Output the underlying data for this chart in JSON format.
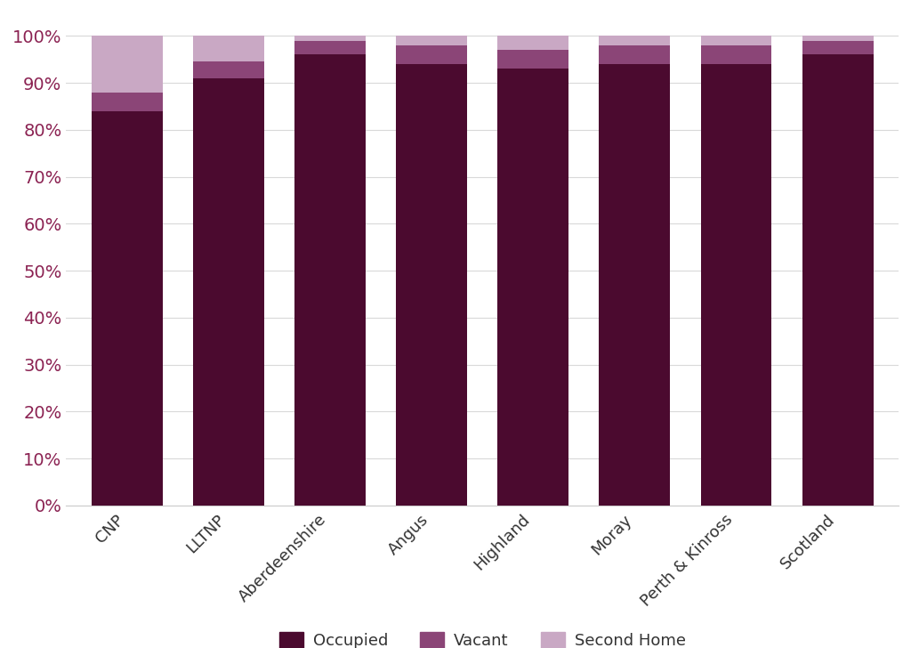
{
  "categories": [
    "CNP",
    "LLTNP",
    "Aberdeenshire",
    "Angus",
    "Highland",
    "Moray",
    "Perth & Kinross",
    "Scotland"
  ],
  "occupied": [
    84.0,
    91.0,
    96.0,
    94.0,
    93.0,
    94.0,
    94.0,
    96.0
  ],
  "vacant": [
    4.0,
    3.5,
    3.0,
    4.0,
    4.0,
    4.0,
    4.0,
    3.0
  ],
  "second_home": [
    12.0,
    5.5,
    1.0,
    2.0,
    3.0,
    2.0,
    2.0,
    1.0
  ],
  "color_occupied": "#4b0a2f",
  "color_vacant": "#8b4577",
  "color_second_home": "#c9a8c4",
  "tick_color": "#8b2252",
  "grid_color": "#d9d9d9",
  "background_color": "#ffffff",
  "bar_width": 0.7,
  "legend_labels": [
    "Occupied",
    "Vacant",
    "Second Home"
  ]
}
